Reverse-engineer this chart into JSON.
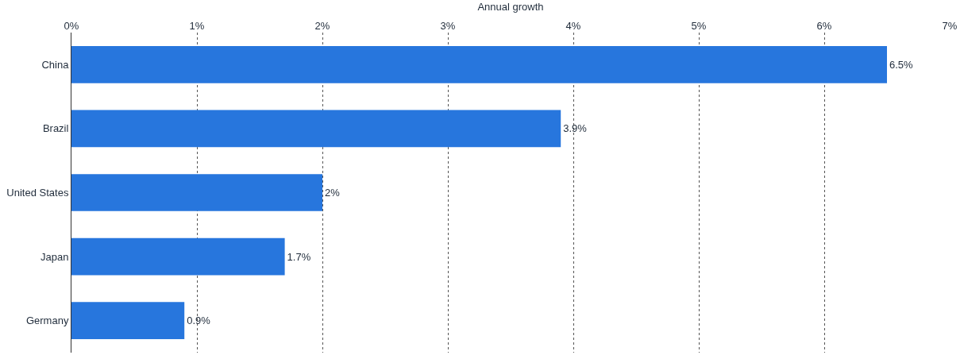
{
  "chart_data": {
    "type": "bar",
    "orientation": "horizontal",
    "xlabel": "Annual growth",
    "categories": [
      "China",
      "Brazil",
      "United States",
      "Japan",
      "Germany"
    ],
    "values": [
      6.5,
      3.9,
      2,
      1.7,
      0.9
    ],
    "value_labels": [
      "6.5%",
      "3.9%",
      "2%",
      "1.7%",
      "0.9%"
    ],
    "color": "#2776dd",
    "xlim": [
      0,
      7
    ],
    "xticks": [
      {
        "value": 0,
        "label": "0%"
      },
      {
        "value": 1,
        "label": "1%"
      },
      {
        "value": 2,
        "label": "2%"
      },
      {
        "value": 3,
        "label": "3%"
      },
      {
        "value": 4,
        "label": "4%"
      },
      {
        "value": 5,
        "label": "5%"
      },
      {
        "value": 6,
        "label": "6%"
      },
      {
        "value": 7,
        "label": "7%"
      }
    ],
    "grid": "x",
    "legend": false
  }
}
